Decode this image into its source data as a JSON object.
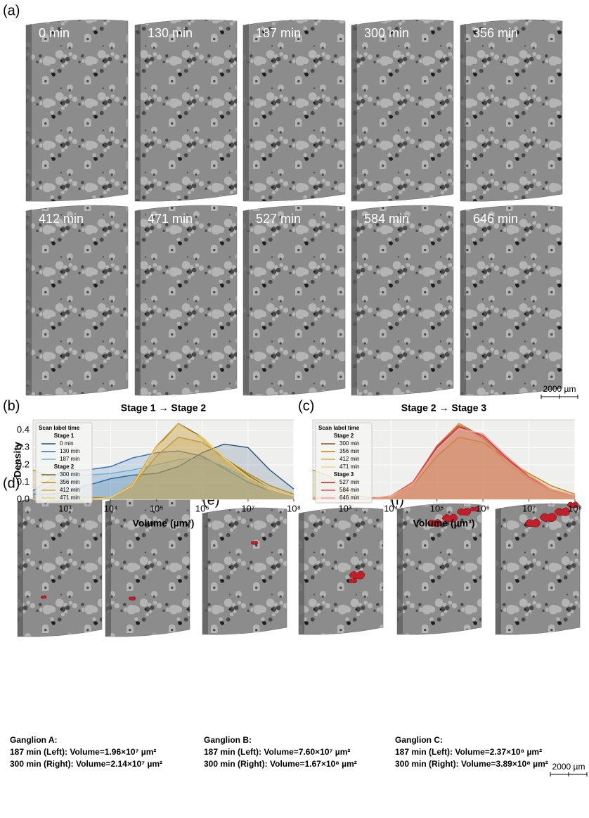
{
  "panels": {
    "a": "(a)",
    "b": "(b)",
    "c": "(c)",
    "d": "(d)",
    "e": "(e)",
    "f": "(f)"
  },
  "time_labels": [
    "0 min",
    "130 min",
    "187 min",
    "300 min",
    "356 min",
    "412 min",
    "471 min",
    "527 min",
    "584 min",
    "646 min"
  ],
  "scale_bar": "2000 µm",
  "ganglia": [
    {
      "name": "Ganglion A:",
      "left": "187 min (Left): Volume=1.96×10⁷ µm²",
      "right": "300 min (Right): Volume=2.14×10⁷ µm²"
    },
    {
      "name": "Ganglion B:",
      "left": "187 min (Left): Volume=7.60×10⁷ µm²",
      "right": "300 min (Right): Volume=1.67×10⁸ µm²"
    },
    {
      "name": "Ganglion C:",
      "left": "187 min (Left): Volume=2.37×10⁸ µm²",
      "right": "300 min (Right): Volume=3.89×10⁸ µm²"
    }
  ],
  "chart_data": [
    {
      "type": "density",
      "title": "Stage 1 → Stage 2",
      "x_label": "Volume (µm³)",
      "y_label": "Density",
      "xscale": "log",
      "xlim": [
        200,
        100000000
      ],
      "ylim": [
        0,
        0.46
      ],
      "xticks": [
        {
          "value": 1000,
          "label": "10³"
        },
        {
          "value": 10000,
          "label": "10⁴"
        },
        {
          "value": 100000,
          "label": "10⁵"
        },
        {
          "value": 1000000,
          "label": "10⁶"
        },
        {
          "value": 10000000,
          "label": "10⁷"
        },
        {
          "value": 100000000,
          "label": "10⁸"
        }
      ],
      "yticks": [
        {
          "value": 0,
          "label": "0.0"
        },
        0.1,
        0.2,
        0.3,
        0.4
      ],
      "show_ytick_labels": true,
      "grid": true,
      "legend": "upper left",
      "legend_title": "Scan label time",
      "x": [
        200,
        500,
        1000,
        3000,
        10000,
        30000,
        100000,
        300000,
        1000000,
        3000000,
        10000000,
        30000000,
        100000000
      ],
      "series": [
        {
          "name": "0 min",
          "stage": "Stage 1",
          "color": "#1f4e79",
          "values": [
            0.03,
            0.03,
            0.04,
            0.08,
            0.12,
            0.14,
            0.15,
            0.19,
            0.27,
            0.32,
            0.3,
            0.17,
            0.06
          ]
        },
        {
          "name": "130 min",
          "stage": "Stage 1",
          "color": "#2f6eb5",
          "values": [
            0.05,
            0.12,
            0.17,
            0.17,
            0.19,
            0.24,
            0.27,
            0.28,
            0.25,
            0.18,
            0.1,
            0.05,
            0.02
          ]
        },
        {
          "name": "187 min",
          "stage": "Stage 1",
          "color": "#6baed6",
          "values": [
            0.03,
            0.08,
            0.12,
            0.14,
            0.15,
            0.17,
            0.2,
            0.23,
            0.24,
            0.19,
            0.12,
            0.06,
            0.02
          ]
        },
        {
          "name": "300 min",
          "stage": "Stage 2",
          "color": "#7a5c1e",
          "values": [
            0,
            0,
            0,
            0,
            0.01,
            0.08,
            0.3,
            0.44,
            0.36,
            0.24,
            0.14,
            0.06,
            0.02
          ]
        },
        {
          "name": "356 min",
          "stage": "Stage 2",
          "color": "#b8860b",
          "values": [
            0.17,
            0.13,
            0.04,
            0.01,
            0.01,
            0.08,
            0.25,
            0.36,
            0.33,
            0.24,
            0.15,
            0.08,
            0.03
          ]
        },
        {
          "name": "412 min",
          "stage": "Stage 2",
          "color": "#d4a84b",
          "values": [
            0,
            0,
            0,
            0,
            0.01,
            0.09,
            0.31,
            0.44,
            0.35,
            0.22,
            0.12,
            0.05,
            0.02
          ]
        },
        {
          "name": "471 min",
          "stage": "Stage 2",
          "color": "#ecd37a",
          "values": [
            0,
            0,
            0,
            0,
            0.01,
            0.08,
            0.3,
            0.42,
            0.36,
            0.24,
            0.13,
            0.06,
            0.02
          ]
        }
      ]
    },
    {
      "type": "density",
      "title": "Stage 2 → Stage 3",
      "x_label": "Volume (µm³)",
      "xscale": "log",
      "xlim": [
        200,
        100000000
      ],
      "ylim": [
        0,
        0.46
      ],
      "xticks": [
        {
          "value": 1000,
          "label": "10³"
        },
        {
          "value": 10000,
          "label": "10⁴"
        },
        {
          "value": 100000,
          "label": "10⁵"
        },
        {
          "value": 1000000,
          "label": "10⁶"
        },
        {
          "value": 10000000,
          "label": "10⁷"
        },
        {
          "value": 100000000,
          "label": "10⁸"
        }
      ],
      "yticks": [
        0,
        0.1,
        0.2,
        0.3,
        0.4
      ],
      "show_ytick_labels": false,
      "grid": true,
      "legend": "upper left",
      "legend_title": "Scan label time",
      "x": [
        200,
        500,
        1000,
        3000,
        10000,
        30000,
        100000,
        300000,
        1000000,
        3000000,
        10000000,
        30000000,
        100000000
      ],
      "series": [
        {
          "name": "300 min",
          "stage": "Stage 2",
          "color": "#7a5c1e",
          "values": [
            0,
            0,
            0,
            0,
            0.01,
            0.08,
            0.3,
            0.44,
            0.36,
            0.24,
            0.14,
            0.06,
            0.02
          ]
        },
        {
          "name": "356 min",
          "stage": "Stage 2",
          "color": "#b8860b",
          "values": [
            0.17,
            0.13,
            0.04,
            0.01,
            0.01,
            0.08,
            0.25,
            0.36,
            0.33,
            0.24,
            0.15,
            0.08,
            0.03
          ]
        },
        {
          "name": "412 min",
          "stage": "Stage 2",
          "color": "#d4a84b",
          "values": [
            0,
            0,
            0,
            0,
            0.01,
            0.09,
            0.31,
            0.44,
            0.35,
            0.22,
            0.12,
            0.05,
            0.02
          ]
        },
        {
          "name": "471 min",
          "stage": "Stage 2",
          "color": "#ecd37a",
          "values": [
            0,
            0,
            0,
            0,
            0.01,
            0.08,
            0.3,
            0.42,
            0.36,
            0.24,
            0.13,
            0.06,
            0.02
          ]
        },
        {
          "name": "527 min",
          "stage": "Stage 3",
          "color": "#b22222",
          "values": [
            0.01,
            0.01,
            0,
            0,
            0.02,
            0.1,
            0.3,
            0.42,
            0.37,
            0.25,
            0.13,
            0.06,
            0.02
          ]
        },
        {
          "name": "584 min",
          "stage": "Stage 3",
          "color": "#d9534f",
          "values": [
            0.01,
            0.01,
            0,
            0,
            0.02,
            0.1,
            0.31,
            0.43,
            0.36,
            0.24,
            0.13,
            0.06,
            0.02
          ]
        },
        {
          "name": "646 min",
          "stage": "Stage 3",
          "color": "#f4a0a0",
          "values": [
            0.01,
            0.01,
            0,
            0,
            0.02,
            0.09,
            0.29,
            0.41,
            0.38,
            0.26,
            0.14,
            0.06,
            0.02
          ]
        }
      ]
    }
  ]
}
